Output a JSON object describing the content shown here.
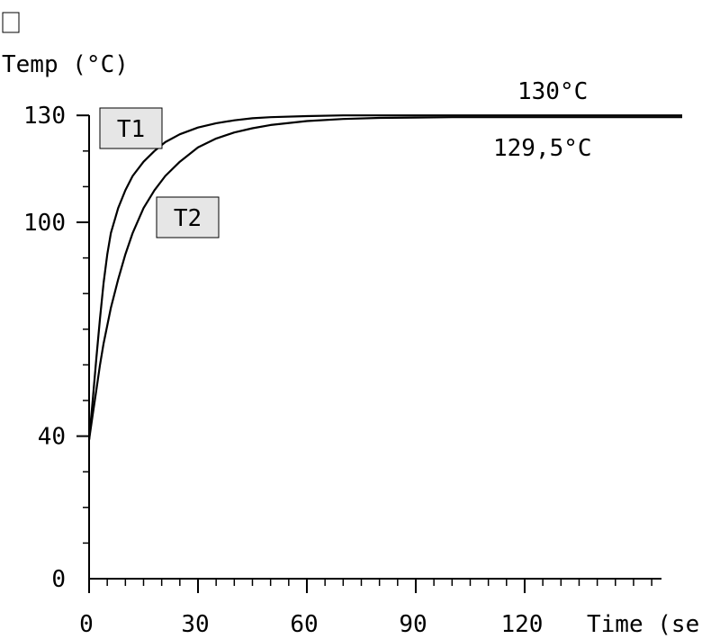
{
  "chart_data": {
    "type": "line",
    "ylabel": "Temp (°C)",
    "xlabel": "Time (se",
    "xlim": [
      0,
      158
    ],
    "ylim": [
      0,
      130
    ],
    "x_ticks": [
      0,
      30,
      60,
      90,
      120
    ],
    "x_tick_labels": [
      "0",
      "30",
      "60",
      "90",
      "120"
    ],
    "y_ticks": [
      0,
      40,
      100,
      130
    ],
    "y_tick_labels": [
      "0",
      "40",
      "100",
      "130"
    ],
    "grid": false,
    "series": [
      {
        "name": "T1",
        "x": [
          0,
          1,
          2,
          3,
          4,
          5,
          6,
          8,
          10,
          12,
          15,
          18,
          21,
          25,
          30,
          35,
          40,
          45,
          50,
          60,
          70,
          80,
          90,
          100,
          120,
          140,
          164
        ],
        "y": [
          39,
          50,
          62,
          73,
          83,
          91,
          97,
          104,
          109,
          113,
          117,
          120,
          122.5,
          124.7,
          126.6,
          127.8,
          128.6,
          129.2,
          129.5,
          129.8,
          130,
          130,
          130,
          130,
          130,
          130,
          130
        ]
      },
      {
        "name": "T2",
        "x": [
          0,
          1,
          2,
          3,
          4,
          6,
          8,
          10,
          12,
          15,
          18,
          21,
          25,
          30,
          35,
          40,
          45,
          50,
          60,
          70,
          80,
          90,
          100,
          120,
          140,
          164
        ],
        "y": [
          39,
          46,
          53,
          60,
          66,
          76,
          84,
          91,
          97,
          104,
          109,
          113,
          117,
          121,
          123.5,
          125.2,
          126.4,
          127.3,
          128.4,
          129,
          129.3,
          129.4,
          129.5,
          129.5,
          129.5,
          129.5
        ]
      }
    ],
    "annotations": [
      {
        "text": "130°C"
      },
      {
        "text": "129,5°C"
      }
    ]
  }
}
